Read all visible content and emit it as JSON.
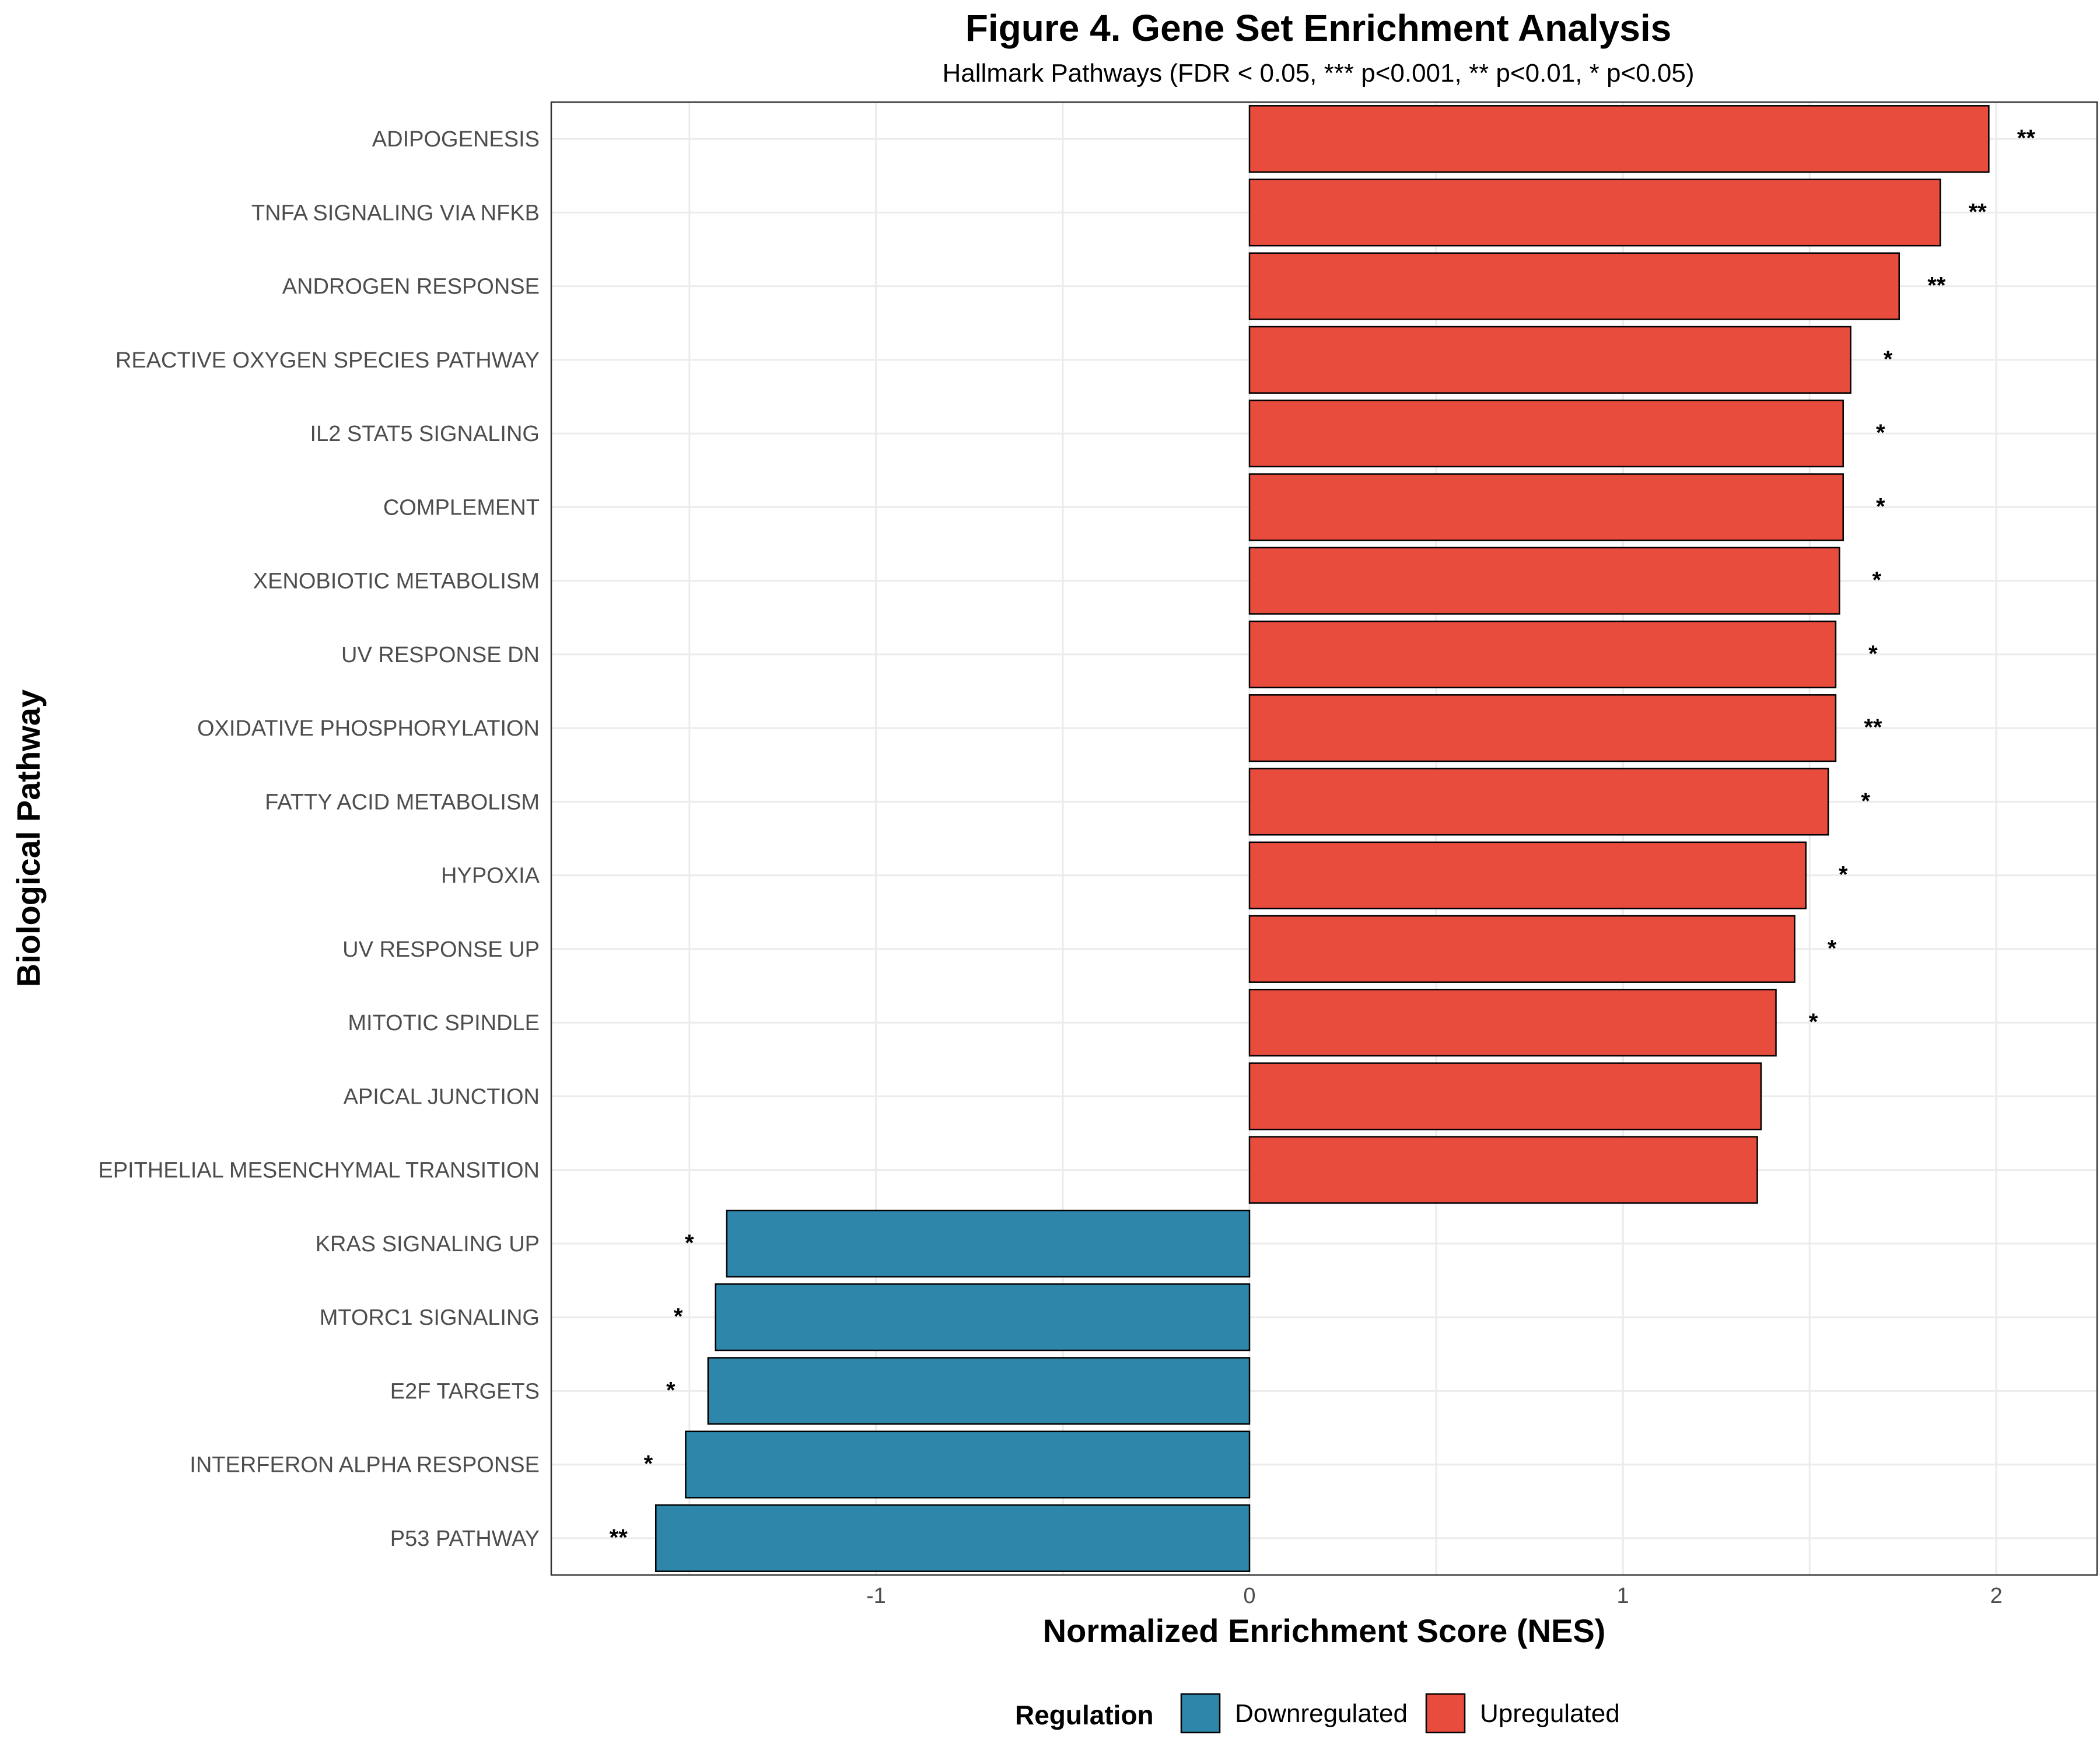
{
  "chart_data": {
    "type": "bar",
    "orientation": "horizontal",
    "title": "Figure 4. Gene Set Enrichment Analysis",
    "subtitle": "Hallmark Pathways (FDR < 0.05, *** p<0.001, ** p<0.01, * p<0.05)",
    "xlabel": "Normalized Enrichment Score (NES)",
    "ylabel": "Biological Pathway",
    "xlim": [
      -1.87,
      2.27
    ],
    "xticks": [
      -1,
      0,
      1,
      2
    ],
    "xtick_labels": [
      "-1",
      "0",
      "1",
      "2"
    ],
    "grid": true,
    "legend": {
      "title": "Regulation",
      "position": "bottom",
      "entries": [
        {
          "label": "Downregulated",
          "color": "#2e86ab"
        },
        {
          "label": "Upregulated",
          "color": "#e84c3d"
        }
      ]
    },
    "categories": [
      "ADIPOGENESIS",
      "TNFA SIGNALING VIA NFKB",
      "ANDROGEN RESPONSE",
      "REACTIVE OXYGEN SPECIES PATHWAY",
      "IL2 STAT5 SIGNALING",
      "COMPLEMENT",
      "XENOBIOTIC METABOLISM",
      "UV RESPONSE DN",
      "OXIDATIVE PHOSPHORYLATION",
      "FATTY ACID METABOLISM",
      "HYPOXIA",
      "UV RESPONSE UP",
      "MITOTIC SPINDLE",
      "APICAL JUNCTION",
      "EPITHELIAL MESENCHYMAL TRANSITION",
      "KRAS SIGNALING UP",
      "MTORC1 SIGNALING",
      "E2F TARGETS",
      "INTERFERON ALPHA RESPONSE",
      "P53 PATHWAY"
    ],
    "values": [
      1.98,
      1.85,
      1.74,
      1.61,
      1.59,
      1.59,
      1.58,
      1.57,
      1.57,
      1.55,
      1.49,
      1.46,
      1.41,
      1.37,
      1.36,
      -1.4,
      -1.43,
      -1.45,
      -1.51,
      -1.59
    ],
    "regulation": [
      "Upregulated",
      "Upregulated",
      "Upregulated",
      "Upregulated",
      "Upregulated",
      "Upregulated",
      "Upregulated",
      "Upregulated",
      "Upregulated",
      "Upregulated",
      "Upregulated",
      "Upregulated",
      "Upregulated",
      "Upregulated",
      "Upregulated",
      "Downregulated",
      "Downregulated",
      "Downregulated",
      "Downregulated",
      "Downregulated"
    ],
    "significance": [
      "**",
      "**",
      "**",
      "*",
      "*",
      "*",
      "*",
      "*",
      "**",
      "*",
      "*",
      "*",
      "*",
      "",
      "",
      "*",
      "*",
      "*",
      "*",
      "**"
    ]
  }
}
